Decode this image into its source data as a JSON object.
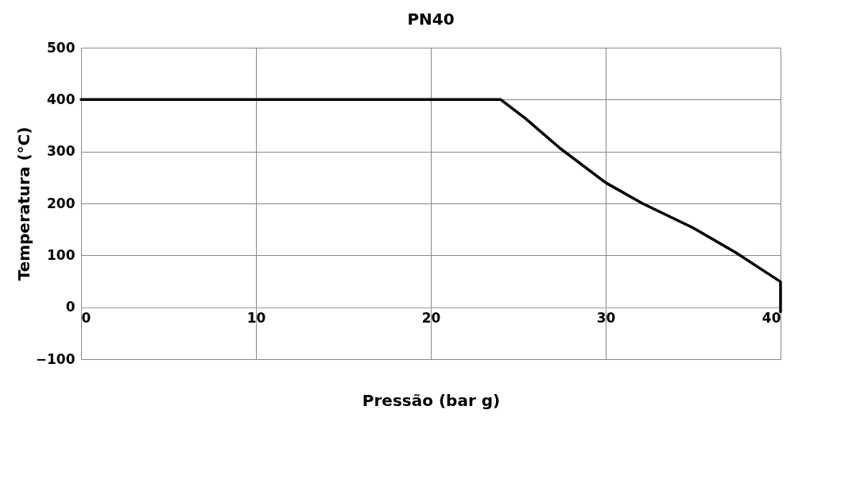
{
  "chart_data": {
    "type": "line",
    "title": "PN40",
    "xlabel": "Pressão (bar g)",
    "ylabel": "Temperatura (°C)",
    "x": [
      0,
      24,
      25.4,
      27.4,
      30,
      32.1,
      35,
      37.45,
      40,
      40
    ],
    "series": [
      {
        "color": "#000000",
        "values": [
          400,
          400,
          364,
          306,
          240,
          200,
          153,
          105,
          49,
          -9
        ]
      }
    ],
    "xlim": [
      0,
      40
    ],
    "xticks": [
      0,
      10,
      20,
      30,
      40
    ],
    "ylim": [
      -100,
      500
    ],
    "yticks": [
      -100,
      0,
      100,
      200,
      300,
      400,
      500
    ],
    "grid": true,
    "marker": "none",
    "line_style": "solid"
  }
}
